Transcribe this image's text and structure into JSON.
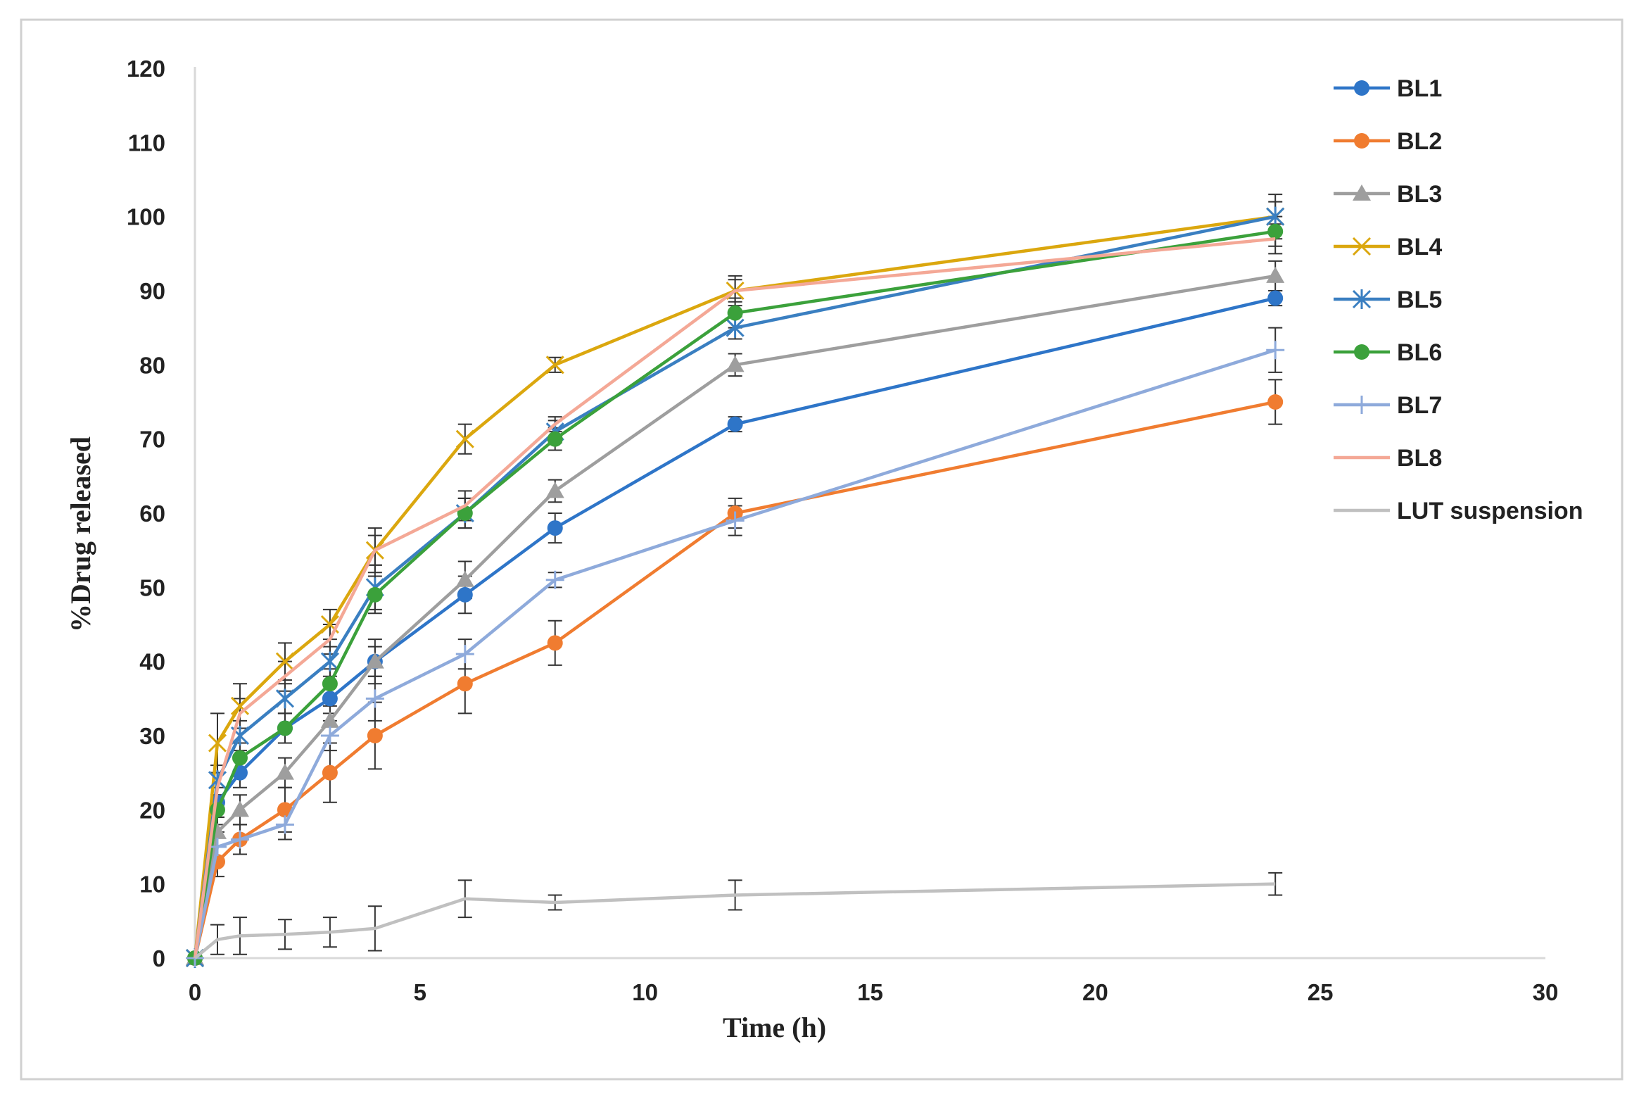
{
  "chart_data": {
    "type": "line",
    "title": "",
    "xlabel": "Time (h)",
    "ylabel": "%Drug released",
    "xlim": [
      0,
      30
    ],
    "ylim": [
      0,
      120
    ],
    "x_ticks": [
      "0",
      "5",
      "10",
      "15",
      "20",
      "25",
      "30"
    ],
    "y_ticks": [
      "0",
      "10",
      "20",
      "30",
      "40",
      "50",
      "60",
      "70",
      "80",
      "90",
      "100",
      "110",
      "120"
    ],
    "grid": false,
    "legend_position": "right",
    "series": [
      {
        "name": "BL1",
        "color": "#2e75c8",
        "marker": "circle",
        "x": [
          0,
          0.5,
          1,
          2,
          3,
          4,
          6,
          8,
          12,
          24
        ],
        "y": [
          0,
          21,
          25,
          31,
          35,
          40,
          49,
          58,
          72,
          89
        ],
        "err": [
          0,
          2,
          2,
          2,
          2,
          2,
          2.5,
          2,
          1,
          1
        ]
      },
      {
        "name": "BL2",
        "color": "#f07c30",
        "marker": "circle",
        "x": [
          0,
          0.5,
          1,
          2,
          3,
          4,
          6,
          8,
          12,
          24
        ],
        "y": [
          0,
          13,
          16,
          20,
          25,
          30,
          37,
          42.5,
          60,
          75
        ],
        "err": [
          0,
          2,
          2,
          3,
          4,
          4.5,
          4,
          3,
          2,
          3
        ]
      },
      {
        "name": "BL3",
        "color": "#9e9e9e",
        "marker": "triangle",
        "x": [
          0,
          0.5,
          1,
          2,
          3,
          4,
          6,
          8,
          12,
          24
        ],
        "y": [
          0,
          17,
          20,
          25,
          32,
          40,
          51,
          63,
          80,
          92
        ],
        "err": [
          0,
          2,
          2,
          2,
          2,
          3,
          2.5,
          1.5,
          1.5,
          2
        ]
      },
      {
        "name": "BL4",
        "color": "#dba70e",
        "marker": "x",
        "x": [
          0,
          0.5,
          1,
          2,
          3,
          4,
          6,
          8,
          12,
          24
        ],
        "y": [
          0,
          29,
          34,
          40,
          45,
          55,
          70,
          80,
          90,
          100
        ],
        "err": [
          0,
          4,
          3,
          2.5,
          2,
          3,
          2,
          1,
          2,
          2
        ]
      },
      {
        "name": "BL5",
        "color": "#3a7fc1",
        "marker": "asterisk",
        "x": [
          0,
          0.5,
          1,
          2,
          3,
          4,
          6,
          8,
          12,
          24
        ],
        "y": [
          0,
          24,
          30,
          35,
          40,
          50,
          60,
          71,
          85,
          100
        ],
        "err": [
          0,
          2,
          2,
          2,
          2,
          3,
          2,
          1.5,
          1.5,
          3
        ]
      },
      {
        "name": "BL6",
        "color": "#3ba13b",
        "marker": "circle",
        "x": [
          0,
          0.5,
          1,
          2,
          3,
          4,
          6,
          8,
          12,
          24
        ],
        "y": [
          0,
          20,
          27,
          31,
          37,
          49,
          60,
          70,
          87,
          98
        ],
        "err": [
          0,
          2,
          2,
          2,
          2,
          2.5,
          2,
          1.5,
          2,
          2
        ]
      },
      {
        "name": "BL7",
        "color": "#8eaadb",
        "marker": "plus",
        "x": [
          0,
          0.5,
          1,
          2,
          3,
          4,
          6,
          8,
          12,
          24
        ],
        "y": [
          0,
          15,
          16,
          18,
          30,
          35,
          41,
          51,
          59,
          82
        ],
        "err": [
          0,
          2,
          2,
          2,
          2,
          3,
          2,
          1,
          2,
          3
        ]
      },
      {
        "name": "BL8",
        "color": "#f4a896",
        "marker": "none",
        "x": [
          0,
          0.5,
          1,
          2,
          3,
          4,
          6,
          8,
          12,
          24
        ],
        "y": [
          0,
          23,
          33,
          38,
          43,
          55,
          61,
          72,
          90,
          97
        ],
        "err": [
          0,
          2,
          2,
          2,
          2,
          2,
          2,
          1,
          1.5,
          2
        ]
      },
      {
        "name": "LUT suspension",
        "color": "#c0c0c0",
        "marker": "none",
        "x": [
          0,
          0.5,
          1,
          2,
          3,
          4,
          6,
          8,
          12,
          24
        ],
        "y": [
          0,
          2.5,
          3,
          3.2,
          3.5,
          4,
          8,
          7.5,
          8.5,
          10
        ],
        "err": [
          0,
          2,
          2.5,
          2,
          2,
          3,
          2.5,
          1,
          2,
          1.5
        ]
      }
    ]
  }
}
